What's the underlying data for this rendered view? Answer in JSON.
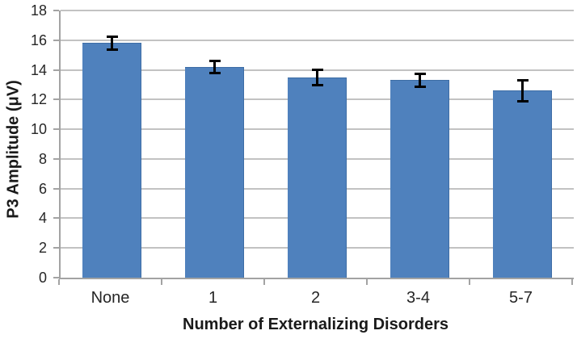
{
  "chart_data": {
    "type": "bar",
    "title": "",
    "xlabel": "Number of Externalizing Disorders",
    "ylabel": "P3 Amplitude (μV)",
    "categories": [
      "None",
      "1",
      "2",
      "3-4",
      "5-7"
    ],
    "values": [
      15.8,
      14.2,
      13.5,
      13.3,
      12.6
    ],
    "error_bars": [
      0.5,
      0.5,
      0.6,
      0.5,
      0.8
    ],
    "ylim": [
      0,
      18
    ],
    "ytick_step": 2,
    "ytick_labels": [
      "0",
      "2",
      "4",
      "6",
      "8",
      "10",
      "12",
      "14",
      "16",
      "18"
    ],
    "grid": "horizontal",
    "legend": "none",
    "bar_color": "#4F81BD",
    "bar_border_color": "#3E6DA5",
    "error_bar_color": "#000000",
    "gridline_color": "#C2C2C2",
    "axis_color": "#A3A3A3",
    "text_color": "#262626"
  }
}
